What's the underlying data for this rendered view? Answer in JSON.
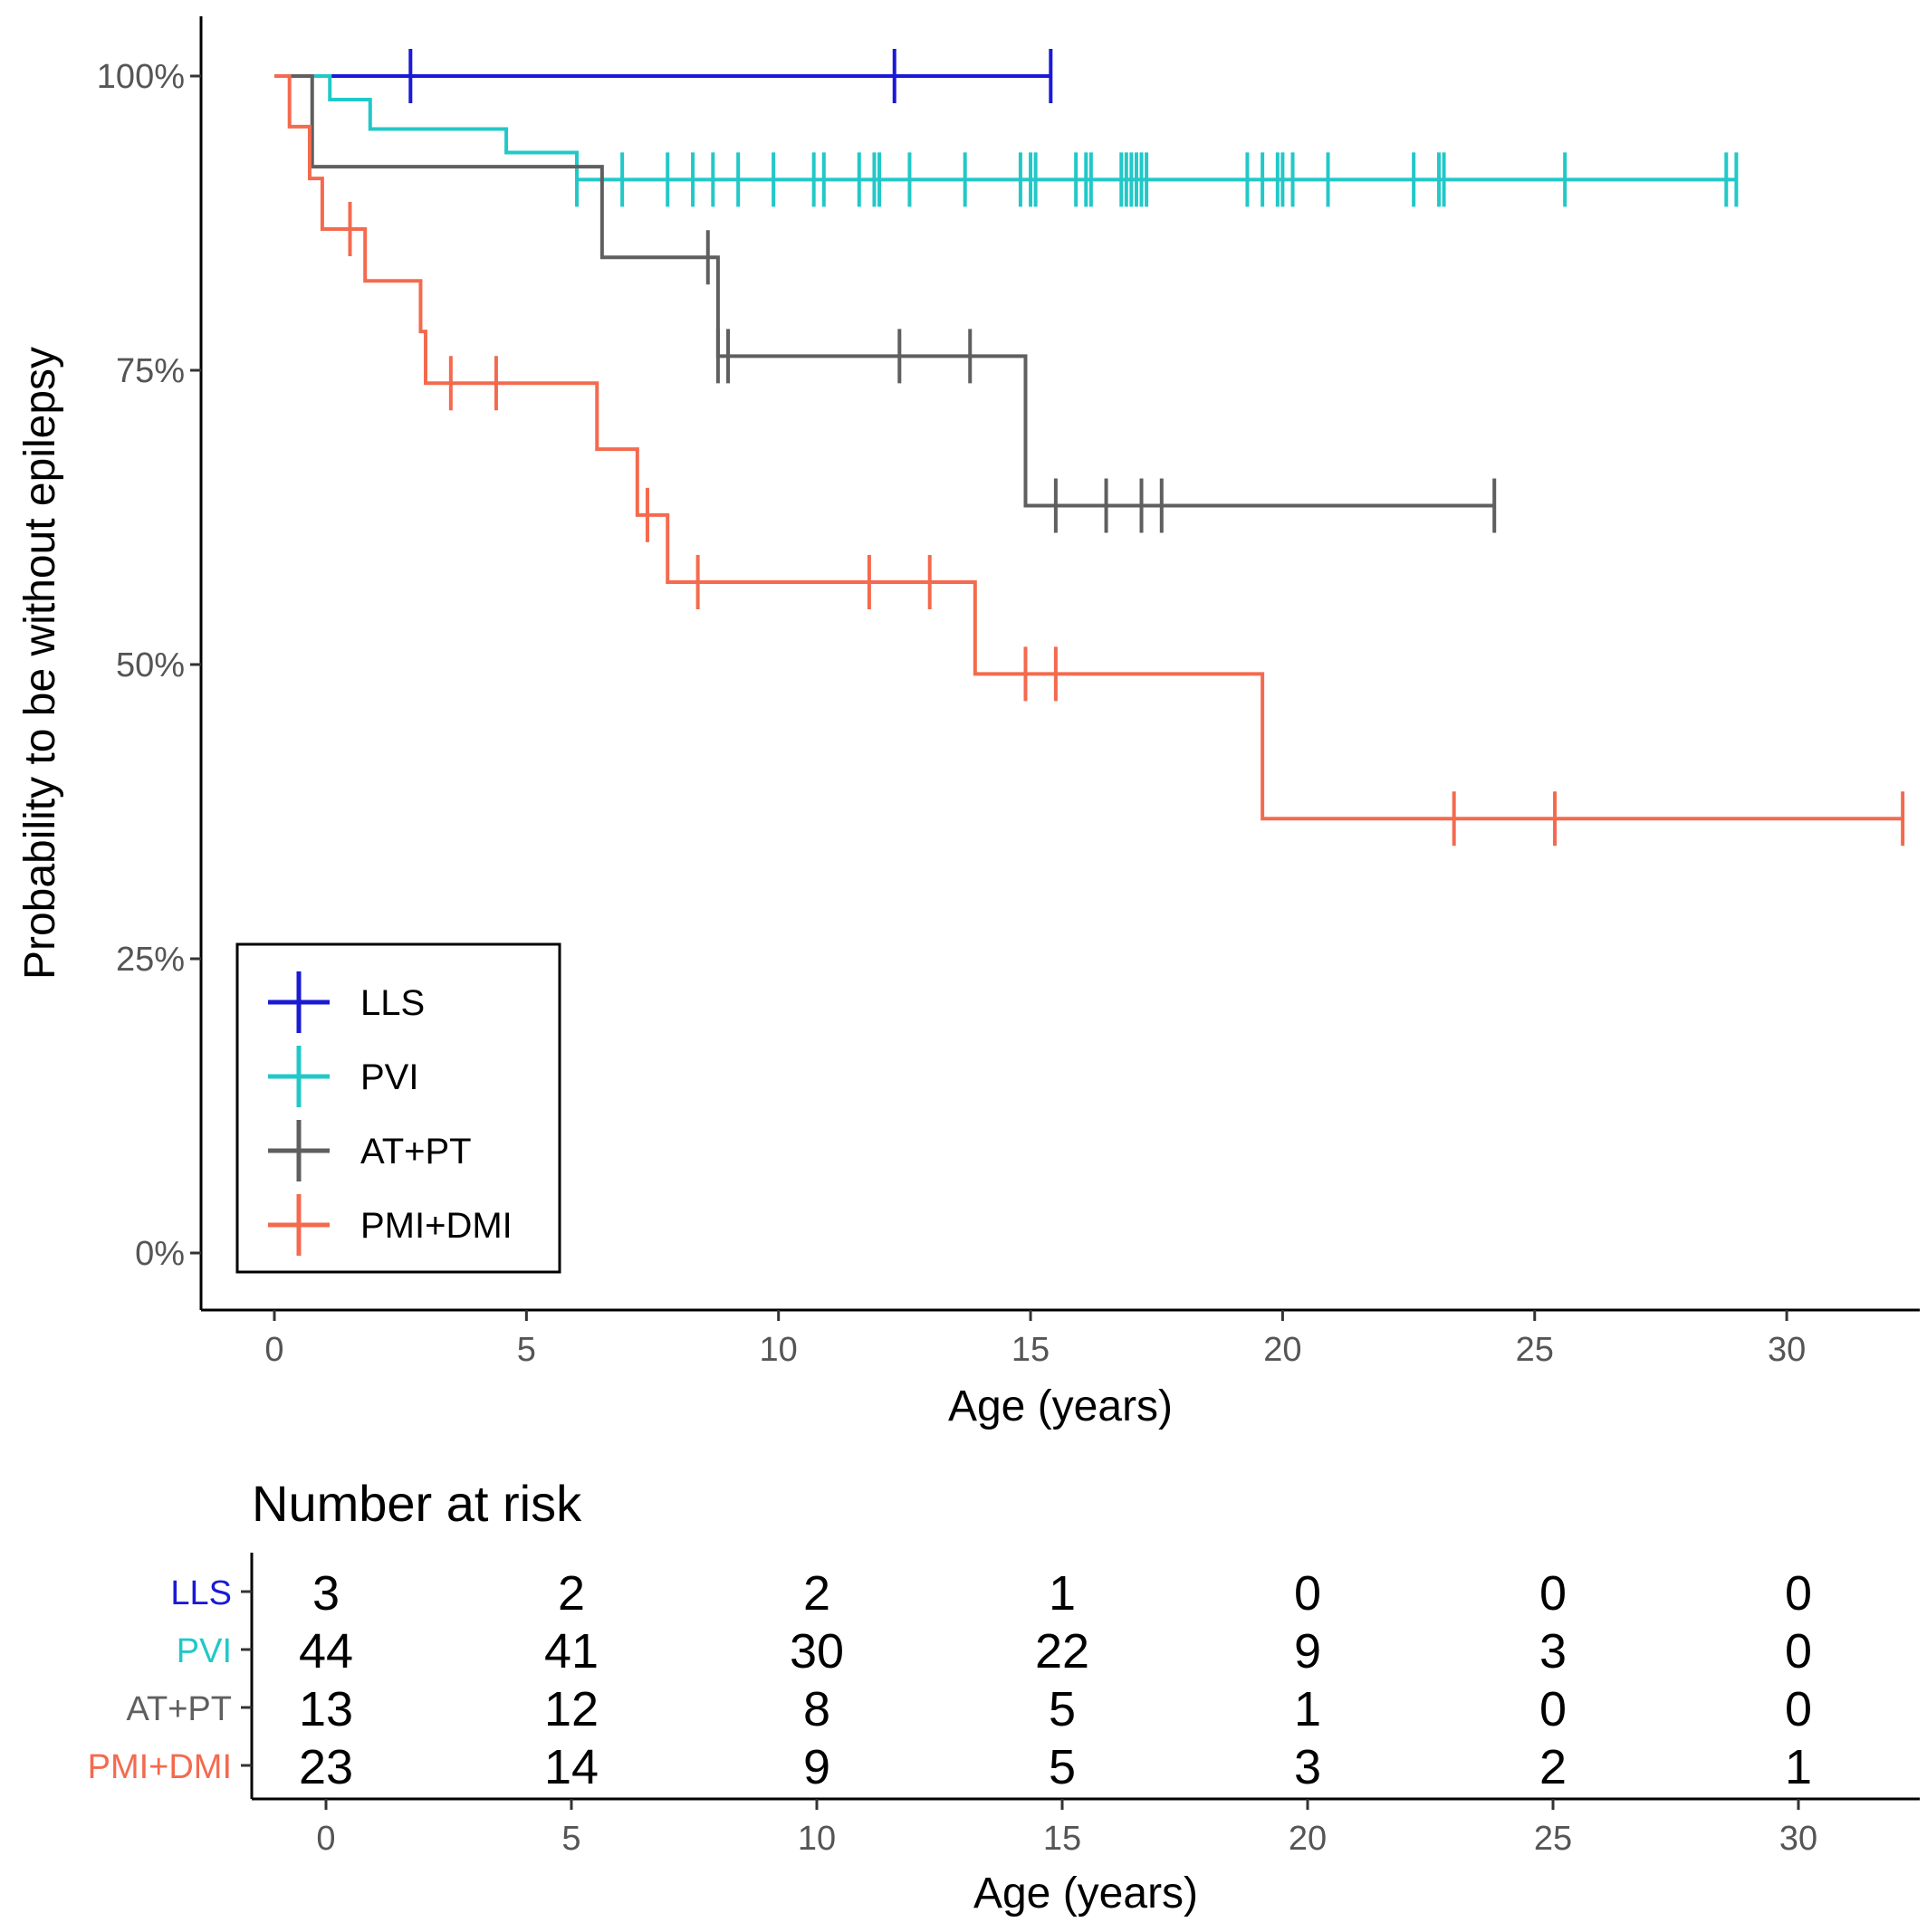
{
  "chart_data": [
    {
      "type": "line",
      "subtype": "kaplan-meier step curves",
      "title": "",
      "xlabel": "Age (years)",
      "ylabel": "Probability to be without epilepsy",
      "xlim": [
        -1.5,
        32.5
      ],
      "ylim": [
        -0.05,
        1.05
      ],
      "x_ticks": [
        0,
        5,
        10,
        15,
        20,
        25,
        30
      ],
      "x_tick_labels": [
        "0",
        "5",
        "10",
        "15",
        "20",
        "25",
        "30"
      ],
      "y_ticks": [
        0,
        0.25,
        0.5,
        0.75,
        1.0
      ],
      "y_tick_labels": [
        "0%",
        "25%",
        "50%",
        "75%",
        "100%"
      ],
      "grid": false,
      "legend_position": "bottom-left",
      "series": [
        {
          "name": "LLS",
          "color": "#1a1ad6",
          "steps": [
            [
              0,
              1.0
            ],
            [
              15.4,
              1.0
            ]
          ],
          "censors": [
            2.7,
            12.3,
            15.4
          ]
        },
        {
          "name": "PVI",
          "color": "#22c8c8",
          "steps": [
            [
              0,
              1.0
            ],
            [
              1.1,
              0.98
            ],
            [
              1.9,
              0.955
            ],
            [
              4.6,
              0.935
            ],
            [
              6.0,
              0.912
            ],
            [
              29.0,
              0.912
            ]
          ],
          "censors": [
            6.0,
            6.9,
            7.8,
            8.3,
            8.7,
            9.2,
            9.9,
            10.7,
            10.9,
            11.6,
            11.9,
            12.0,
            12.6,
            13.7,
            14.8,
            15.0,
            15.1,
            15.9,
            16.1,
            16.2,
            16.8,
            16.9,
            17.0,
            17.1,
            17.2,
            17.3,
            19.3,
            19.6,
            19.9,
            20.0,
            20.2,
            20.9,
            22.6,
            23.1,
            23.2,
            25.6,
            28.8,
            29.0
          ]
        },
        {
          "name": "AT+PT",
          "color": "#5f5f5f",
          "steps": [
            [
              0,
              1.0
            ],
            [
              0.75,
              0.923
            ],
            [
              6.5,
              0.846
            ],
            [
              8.8,
              0.762
            ],
            [
              14.9,
              0.635
            ],
            [
              24.2,
              0.635
            ]
          ],
          "censors": [
            8.6,
            8.8,
            9.0,
            12.4,
            13.8,
            15.5,
            16.5,
            17.2,
            17.6,
            24.2
          ]
        },
        {
          "name": "PMI+DMI",
          "color": "#f46a4e",
          "steps": [
            [
              0,
              1.0
            ],
            [
              0.3,
              0.957
            ],
            [
              0.7,
              0.913
            ],
            [
              0.95,
              0.87
            ],
            [
              1.8,
              0.826
            ],
            [
              2.9,
              0.783
            ],
            [
              3.0,
              0.739
            ],
            [
              6.4,
              0.683
            ],
            [
              7.2,
              0.627
            ],
            [
              7.8,
              0.57
            ],
            [
              13.9,
              0.492
            ],
            [
              19.6,
              0.369
            ],
            [
              32.3,
              0.369
            ]
          ],
          "censors": [
            1.5,
            3.5,
            4.4,
            7.4,
            8.4,
            11.8,
            13.0,
            14.9,
            15.5,
            23.4,
            25.4,
            32.3
          ]
        }
      ]
    },
    {
      "type": "table",
      "title": "Number at risk",
      "xlabel": "Age (years)",
      "times": [
        0,
        5,
        10,
        15,
        20,
        25,
        30
      ],
      "time_labels": [
        "0",
        "5",
        "10",
        "15",
        "20",
        "25",
        "30"
      ],
      "rows": [
        {
          "name": "LLS",
          "color": "#1a1ad6",
          "values": [
            3,
            2,
            2,
            1,
            0,
            0,
            0
          ]
        },
        {
          "name": "PVI",
          "color": "#22c8c8",
          "values": [
            44,
            41,
            30,
            22,
            9,
            3,
            0
          ]
        },
        {
          "name": "AT+PT",
          "color": "#5f5f5f",
          "values": [
            13,
            12,
            8,
            5,
            1,
            0,
            0
          ]
        },
        {
          "name": "PMI+DMI",
          "color": "#f46a4e",
          "values": [
            23,
            14,
            9,
            5,
            3,
            2,
            1
          ]
        }
      ]
    }
  ]
}
